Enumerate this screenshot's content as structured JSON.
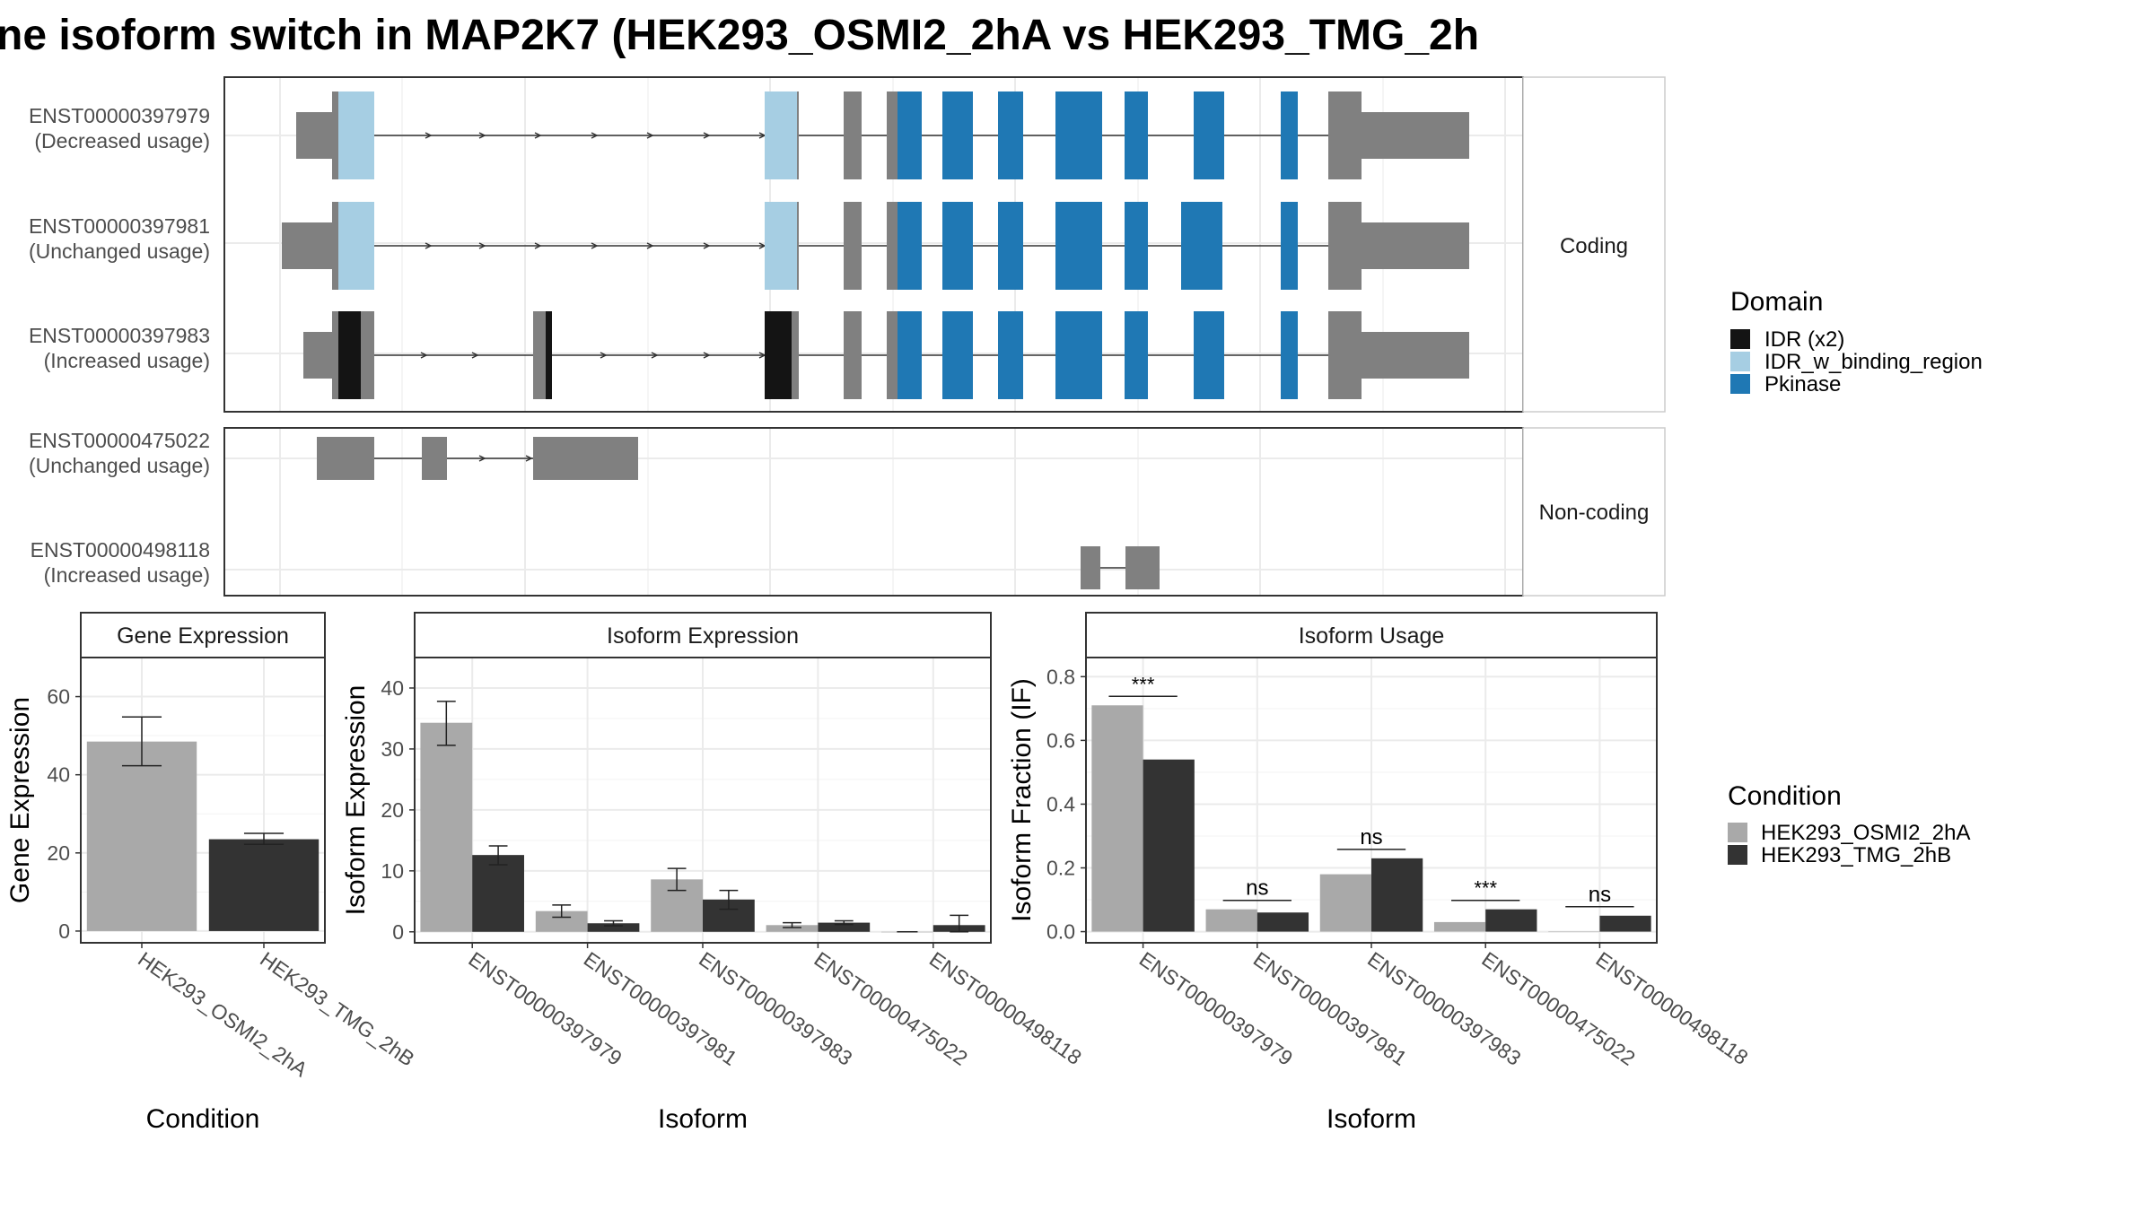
{
  "title": "ne isoform switch in MAP2K7 (HEK293_OSMI2_2hA vs HEK293_TMG_2h",
  "colors": {
    "idr": "#141414",
    "idr_binding": "#a6cee3",
    "pkinase": "#1f78b4",
    "exon": "#808080",
    "cond_a": "#a9a9a9",
    "cond_b": "#333333"
  },
  "structure": {
    "facets": [
      "Coding",
      "Non-coding"
    ],
    "transcripts": [
      {
        "id": "ENST00000397979",
        "usage": "(Decreased usage)",
        "facet": "Coding"
      },
      {
        "id": "ENST00000397981",
        "usage": "(Unchanged usage)",
        "facet": "Coding"
      },
      {
        "id": "ENST00000397983",
        "usage": "(Increased usage)",
        "facet": "Coding"
      },
      {
        "id": "ENST00000475022",
        "usage": "(Unchanged usage)",
        "facet": "Non-coding"
      },
      {
        "id": "ENST00000498118",
        "usage": "(Increased usage)",
        "facet": "Non-coding"
      }
    ],
    "legend_title": "Domain",
    "legend": [
      {
        "label": "IDR (x2)",
        "color": "#141414"
      },
      {
        "label": "IDR_w_binding_region",
        "color": "#a6cee3"
      },
      {
        "label": "Pkinase",
        "color": "#1f78b4"
      }
    ]
  },
  "condition_legend": {
    "title": "Condition",
    "items": [
      {
        "label": "HEK293_OSMI2_2hA",
        "color": "#a9a9a9"
      },
      {
        "label": "HEK293_TMG_2hB",
        "color": "#333333"
      }
    ]
  },
  "chart_data": [
    {
      "type": "bar",
      "title": "Gene Expression",
      "xlabel": "Condition",
      "ylabel": "Gene Expression",
      "categories": [
        "HEK293_OSMI2_2hA",
        "HEK293_TMG_2hB"
      ],
      "values": [
        48.5,
        23.5
      ],
      "error": [
        [
          42.3,
          54.8
        ],
        [
          22.2,
          25.0
        ]
      ],
      "ylim": [
        -3,
        70
      ],
      "yticks": [
        0,
        20,
        40,
        60
      ],
      "grid": true
    },
    {
      "type": "bar",
      "title": "Isoform Expression",
      "xlabel": "Isoform",
      "ylabel": "Isoform Expression",
      "categories": [
        "ENST00000397979",
        "ENST00000397981",
        "ENST00000397983",
        "ENST00000475022",
        "ENST00000498118"
      ],
      "series": [
        {
          "name": "HEK293_OSMI2_2hA",
          "values": [
            34.3,
            3.4,
            8.6,
            1.1,
            0.0
          ],
          "error": [
            [
              30.6,
              37.8
            ],
            [
              2.4,
              4.4
            ],
            [
              6.8,
              10.4
            ],
            [
              0.7,
              1.5
            ],
            [
              0.0,
              0.0
            ]
          ]
        },
        {
          "name": "HEK293_TMG_2hB",
          "values": [
            12.6,
            1.4,
            5.3,
            1.5,
            1.1
          ],
          "error": [
            [
              11.0,
              14.1
            ],
            [
              1.0,
              1.8
            ],
            [
              3.7,
              6.8
            ],
            [
              1.2,
              1.8
            ],
            [
              0.0,
              2.7
            ]
          ]
        }
      ],
      "ylim": [
        -1.8,
        45
      ],
      "yticks": [
        0,
        10,
        20,
        30,
        40
      ],
      "grid": true
    },
    {
      "type": "bar",
      "title": "Isoform Usage",
      "xlabel": "Isoform",
      "ylabel": "Isoform Fraction (IF)",
      "categories": [
        "ENST00000397979",
        "ENST00000397981",
        "ENST00000397983",
        "ENST00000475022",
        "ENST00000498118"
      ],
      "series": [
        {
          "name": "HEK293_OSMI2_2hA",
          "values": [
            0.71,
            0.07,
            0.18,
            0.03,
            0.0
          ]
        },
        {
          "name": "HEK293_TMG_2hB",
          "values": [
            0.54,
            0.06,
            0.23,
            0.07,
            0.05
          ]
        }
      ],
      "significance": [
        "***",
        "ns",
        "ns",
        "***",
        "ns"
      ],
      "ylim": [
        -0.035,
        0.86
      ],
      "yticks": [
        0.0,
        0.2,
        0.4,
        0.6,
        0.8
      ],
      "ytick_labels": [
        "0.0",
        "0.2",
        "0.4",
        "0.6",
        "0.8"
      ],
      "grid": true
    }
  ]
}
